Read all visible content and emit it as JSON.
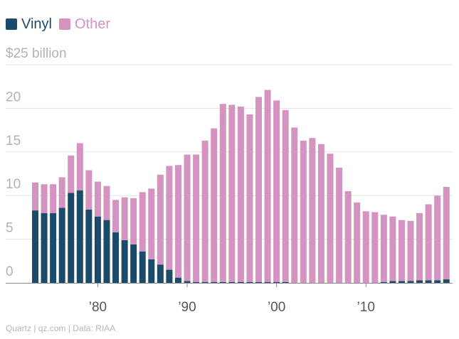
{
  "chart_data": {
    "type": "bar",
    "stacked": true,
    "x": [
      1973,
      1974,
      1975,
      1976,
      1977,
      1978,
      1979,
      1980,
      1981,
      1982,
      1983,
      1984,
      1985,
      1986,
      1987,
      1988,
      1989,
      1990,
      1991,
      1992,
      1993,
      1994,
      1995,
      1996,
      1997,
      1998,
      1999,
      2000,
      2001,
      2002,
      2003,
      2004,
      2005,
      2006,
      2007,
      2008,
      2009,
      2010,
      2011,
      2012,
      2013,
      2014,
      2015,
      2016,
      2017,
      2018,
      2019
    ],
    "series": [
      {
        "name": "Vinyl",
        "color": "#1b4b6b",
        "values": [
          8.3,
          8.0,
          8.0,
          8.6,
          10.3,
          10.6,
          8.4,
          7.6,
          7.2,
          5.8,
          4.9,
          4.4,
          3.6,
          2.7,
          2.1,
          1.5,
          0.6,
          0.2,
          0.1,
          0.1,
          0.1,
          0.1,
          0.1,
          0.1,
          0.1,
          0.1,
          0.1,
          0.1,
          0.1,
          0.0,
          0.0,
          0.0,
          0.0,
          0.0,
          0.0,
          0.0,
          0.0,
          0.0,
          0.0,
          0.1,
          0.2,
          0.2,
          0.2,
          0.3,
          0.3,
          0.3,
          0.4
        ]
      },
      {
        "name": "Other",
        "color": "#d593c0",
        "values": [
          3.2,
          3.3,
          3.3,
          3.5,
          4.3,
          5.4,
          4.5,
          4.0,
          3.9,
          3.7,
          4.9,
          5.3,
          6.8,
          8.1,
          10.3,
          11.9,
          12.9,
          14.5,
          14.6,
          16.2,
          17.6,
          20.4,
          20.3,
          20.1,
          19.2,
          21.2,
          22.0,
          20.8,
          19.7,
          17.8,
          16.3,
          16.6,
          15.9,
          14.8,
          13.2,
          10.5,
          9.2,
          8.2,
          8.1,
          7.7,
          7.4,
          7.0,
          6.9,
          7.7,
          8.7,
          9.7,
          10.6
        ]
      }
    ],
    "ylim": [
      0,
      25
    ],
    "yticks": [
      0,
      5,
      10,
      15,
      20,
      25
    ],
    "ytick_labels": [
      "0",
      "5",
      "10",
      "15",
      "20",
      "$25 billion"
    ],
    "xticks": [
      1980,
      1990,
      2000,
      2010
    ],
    "xtick_labels": [
      "’80",
      "’90",
      "’00",
      "’10"
    ],
    "title": "",
    "xlabel": "",
    "ylabel": "",
    "legend_position": "top-left",
    "grid": true
  },
  "source": "Quartz | qz.com | Data: RIAA"
}
